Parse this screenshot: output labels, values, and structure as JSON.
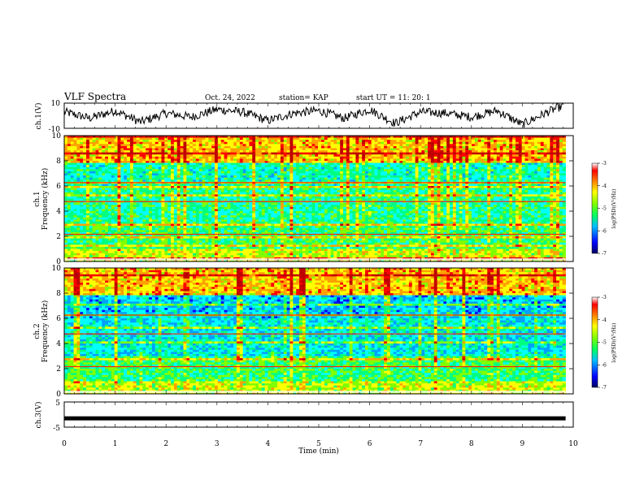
{
  "header": {
    "title": "VLF Spectra",
    "date": "Oct. 24, 2022",
    "station": "station= KAP",
    "start": "start  UT =   11: 20: 1"
  },
  "colors": {
    "spectrum": [
      "#000080",
      "#0000ff",
      "#00a0ff",
      "#00ffff",
      "#00ff80",
      "#80ff00",
      "#ffff00",
      "#ffa000",
      "#ff0000",
      "#c00000"
    ],
    "trace": "#000000"
  },
  "chart_data": [
    {
      "type": "line",
      "panel": "ch1_waveform",
      "ylabel": "ch.1(V)",
      "ylim": [
        -10,
        10
      ],
      "yticks": [
        "10",
        "-10"
      ],
      "x": [
        0,
        0.5,
        1,
        1.5,
        2,
        2.5,
        3,
        3.5,
        4,
        4.5,
        5,
        5.5,
        6,
        6.5,
        7,
        7.5,
        8,
        8.5,
        9,
        9.5,
        9.8
      ],
      "values": [
        3,
        -2,
        4,
        -5,
        2,
        -1,
        5,
        3,
        -4,
        2,
        4,
        -2,
        5,
        -6,
        3,
        2,
        -1,
        4,
        -7,
        3,
        8
      ],
      "xlim": [
        0,
        10
      ]
    },
    {
      "type": "heatmap",
      "panel": "ch1_spectrogram",
      "ylabel": "ch.1\nFrequency (kHz)",
      "ylim": [
        0,
        10
      ],
      "yticks": [
        "0",
        "2",
        "4",
        "6",
        "8",
        "10"
      ],
      "xlim": [
        0,
        9.85
      ],
      "colorbar": {
        "label": "log(PSD)(V²/Hz)",
        "range": [
          -7,
          -3
        ],
        "ticks": [
          "-3",
          "-4",
          "-5",
          "-6",
          "-7"
        ]
      }
    },
    {
      "type": "heatmap",
      "panel": "ch2_spectrogram",
      "ylabel": "ch.2\nFrequency (kHz)",
      "ylim": [
        0,
        10
      ],
      "yticks": [
        "0",
        "2",
        "4",
        "6",
        "8",
        "10"
      ],
      "xlim": [
        0,
        9.85
      ],
      "colorbar": {
        "label": "log(PSD)(V²/Hz)",
        "range": [
          -7,
          -3
        ],
        "ticks": [
          "-3",
          "-4",
          "-5",
          "-6",
          "-7"
        ]
      }
    },
    {
      "type": "line",
      "panel": "ch3_waveform",
      "ylabel": "ch.3(V)",
      "ylim": [
        -5,
        5
      ],
      "yticks": [
        "5",
        "-5"
      ],
      "x": [
        0,
        9.85
      ],
      "values": [
        -1.5,
        -1.5
      ],
      "xlim": [
        0,
        10
      ]
    }
  ],
  "xaxis": {
    "label": "Time (min)",
    "ticks": [
      "0",
      "1",
      "2",
      "3",
      "4",
      "5",
      "6",
      "7",
      "8",
      "9",
      "10"
    ]
  },
  "ch1_label": "ch.1",
  "ch1_freq": "Frequency (kHz)",
  "ch2_label": "ch.2",
  "ch2_freq": "Frequency (kHz)",
  "cb_label": "log(PSD)(V²/Hz)"
}
